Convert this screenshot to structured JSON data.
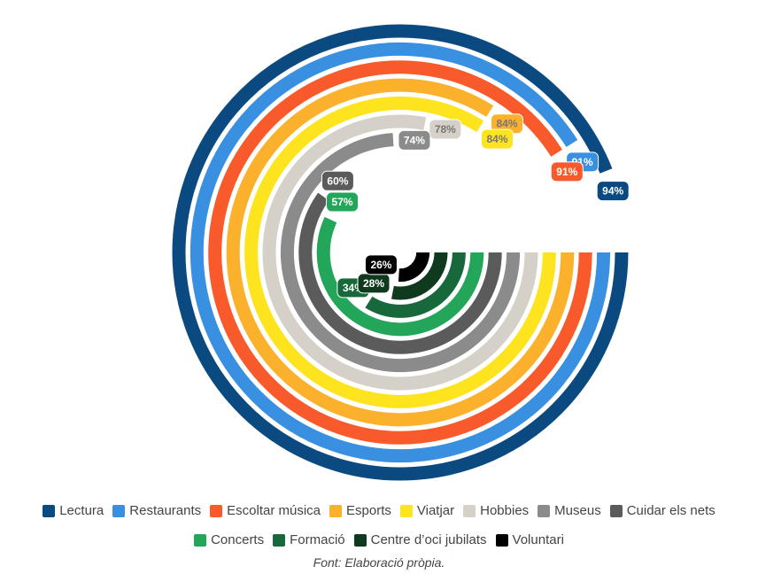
{
  "chart_data": {
    "type": "radial_bar",
    "categories": [
      "Lectura",
      "Restaurants",
      "Escoltar música",
      "Esports",
      "Viatjar",
      "Hobbies",
      "Museus",
      "Cuidar els nets",
      "Concerts",
      "Formació",
      "Centre d’oci jubilats",
      "Voluntari"
    ],
    "values": [
      94,
      91,
      91,
      84,
      84,
      78,
      74,
      60,
      57,
      34,
      28,
      26
    ],
    "value_labels": [
      "94%",
      "91%",
      "91%",
      "84%",
      "84%",
      "78%",
      "74%",
      "60%",
      "57%",
      "34%",
      "28%",
      "26%"
    ],
    "colors": [
      "#0b4a80",
      "#3a90e0",
      "#f95a2c",
      "#fbb12b",
      "#fde41f",
      "#d5d0c8",
      "#8b8b8b",
      "#5b5b5b",
      "#23a65a",
      "#17683b",
      "#0f3a1d",
      "#000000"
    ],
    "ylim": [
      0,
      100
    ],
    "footnote": "Font: Elaboració pròpia."
  }
}
